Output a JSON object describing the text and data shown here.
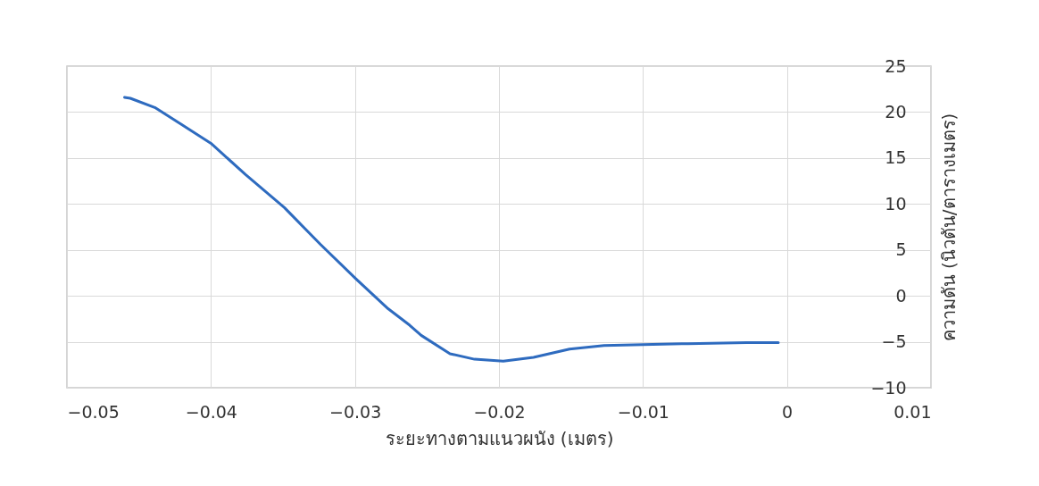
{
  "chart_data": {
    "type": "line",
    "xlabel": "ระยะทางตามแนวผนัง (เมตร)",
    "ylabel": "ความดัน (นิวตัน/ตารางเมตร)",
    "xlim": [
      -0.05,
      0.01
    ],
    "xticks": [
      -0.05,
      -0.04,
      -0.03,
      -0.02,
      -0.01,
      0,
      0.01
    ],
    "ylim": [
      -10,
      25
    ],
    "yticks": [
      -10,
      -5,
      0,
      5,
      10,
      15,
      20,
      25
    ],
    "grid": true,
    "series": [
      {
        "color": "#2e6bbf",
        "x": [
          -0.046,
          -0.0456,
          -0.0439,
          -0.0421,
          -0.04,
          -0.0376,
          -0.0349,
          -0.0324,
          -0.0299,
          -0.0277,
          -0.0262,
          -0.0254,
          -0.0234,
          -0.0217,
          -0.0197,
          -0.0176,
          -0.0151,
          -0.0127,
          -0.01,
          -0.0069,
          -0.0028,
          -0.0006
        ],
        "values": [
          21.6,
          21.5,
          20.5,
          18.7,
          16.6,
          13.2,
          9.6,
          5.6,
          1.8,
          -1.4,
          -3.2,
          -4.3,
          -6.3,
          -6.9,
          -7.1,
          -6.7,
          -5.8,
          -5.4,
          -5.3,
          -5.2,
          -5.1,
          -5.1
        ]
      }
    ]
  }
}
